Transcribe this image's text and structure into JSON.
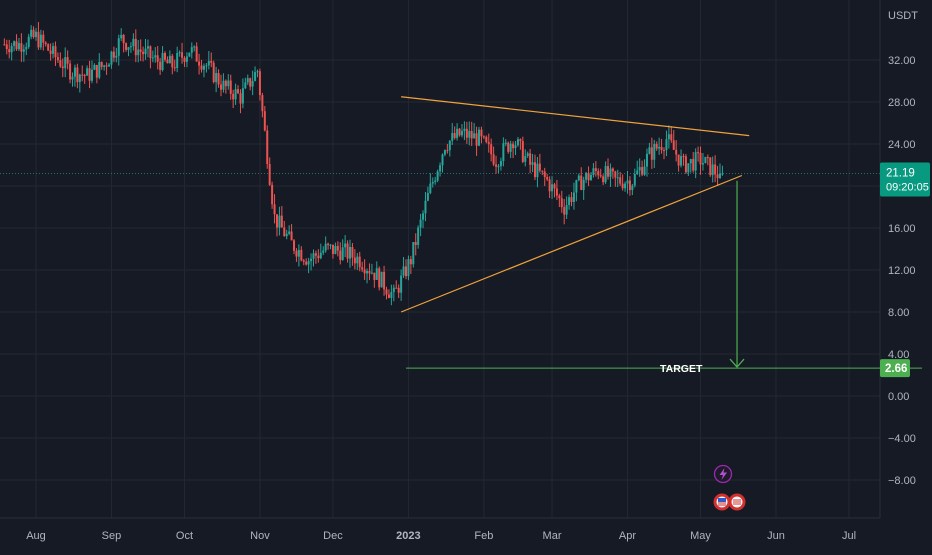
{
  "axis": {
    "currency": "USDT",
    "y_ticks": [
      "32.00",
      "28.00",
      "24.00",
      "20.00",
      "16.00",
      "12.00",
      "8.00",
      "4.00",
      "0.00",
      "−4.00",
      "−8.00"
    ],
    "y_tick_values": [
      32,
      28,
      24,
      20,
      16,
      12,
      8,
      4,
      0,
      -4,
      -8
    ],
    "x_ticks": [
      "Aug",
      "Sep",
      "Oct",
      "Nov",
      "Dec",
      "2023",
      "Feb",
      "Mar",
      "Apr",
      "May",
      "Jun",
      "Jul"
    ],
    "x_tick_dates": [
      "2022-08-01",
      "2022-09-01",
      "2022-10-01",
      "2022-11-01",
      "2022-12-01",
      "2023-01-01",
      "2023-02-01",
      "2023-03-01",
      "2023-04-01",
      "2023-05-01",
      "2023-06-01",
      "2023-07-01"
    ]
  },
  "price_badge": {
    "value": "21.19",
    "countdown": "09:20:05"
  },
  "target_badge": {
    "value": "2.66"
  },
  "target_label": "TARGET",
  "colors": {
    "background": "#161a25",
    "up": "#26a69a",
    "down": "#ef5350",
    "trendline": "#f0a23b",
    "target": "#4caf50",
    "badge_price": "#089981",
    "grid": "#232833"
  },
  "icons": [
    "lightning-event-icon",
    "us-flag-event-icon",
    "us-flag-event-icon"
  ],
  "chart_data": {
    "type": "candlestick",
    "title": "",
    "xlabel": "",
    "ylabel": "",
    "ylim": [
      -10,
      36
    ],
    "grid": true,
    "last_price": 21.19,
    "weekly_close": [
      [
        "2022-07-25",
        33.5
      ],
      [
        "2022-08-01",
        34.2
      ],
      [
        "2022-08-08",
        32.5
      ],
      [
        "2022-08-15",
        31.0
      ],
      [
        "2022-08-22",
        30.5
      ],
      [
        "2022-08-29",
        31.5
      ],
      [
        "2022-09-05",
        34.0
      ],
      [
        "2022-09-12",
        33.0
      ],
      [
        "2022-09-19",
        32.0
      ],
      [
        "2022-09-26",
        31.5
      ],
      [
        "2022-10-03",
        33.0
      ],
      [
        "2022-10-10",
        31.5
      ],
      [
        "2022-10-17",
        29.5
      ],
      [
        "2022-10-24",
        28.5
      ],
      [
        "2022-10-31",
        31.0
      ],
      [
        "2022-11-07",
        17.0
      ],
      [
        "2022-11-14",
        14.5
      ],
      [
        "2022-11-21",
        13.0
      ],
      [
        "2022-11-28",
        14.0
      ],
      [
        "2022-12-05",
        13.8
      ],
      [
        "2022-12-12",
        13.0
      ],
      [
        "2022-12-19",
        11.5
      ],
      [
        "2022-12-26",
        9.5
      ],
      [
        "2023-01-02",
        13.0
      ],
      [
        "2023-01-09",
        19.0
      ],
      [
        "2023-01-16",
        24.0
      ],
      [
        "2023-01-23",
        25.0
      ],
      [
        "2023-01-30",
        24.5
      ],
      [
        "2023-02-06",
        22.5
      ],
      [
        "2023-02-13",
        24.5
      ],
      [
        "2023-02-20",
        22.0
      ],
      [
        "2023-02-27",
        20.5
      ],
      [
        "2023-03-06",
        18.0
      ],
      [
        "2023-03-13",
        20.5
      ],
      [
        "2023-03-20",
        21.5
      ],
      [
        "2023-03-27",
        20.5
      ],
      [
        "2023-04-03",
        20.5
      ],
      [
        "2023-04-10",
        23.0
      ],
      [
        "2023-04-17",
        24.5
      ],
      [
        "2023-04-24",
        22.0
      ],
      [
        "2023-05-01",
        22.5
      ],
      [
        "2023-05-08",
        21.19
      ]
    ],
    "drawings": [
      {
        "name": "upper-trendline",
        "from": [
          "2022-12-29",
          28.5
        ],
        "to": [
          "2023-05-21",
          24.8
        ]
      },
      {
        "name": "lower-trendline",
        "from": [
          "2022-12-29",
          8.0
        ],
        "to": [
          "2023-05-18",
          21.0
        ]
      },
      {
        "name": "target-arrow",
        "from": [
          "2023-05-16",
          20.5
        ],
        "to": [
          "2023-05-16",
          2.66
        ]
      },
      {
        "name": "target-line",
        "from": [
          "2022-12-31",
          2.66
        ],
        "to": [
          "2023-07-31",
          2.66
        ]
      }
    ]
  }
}
